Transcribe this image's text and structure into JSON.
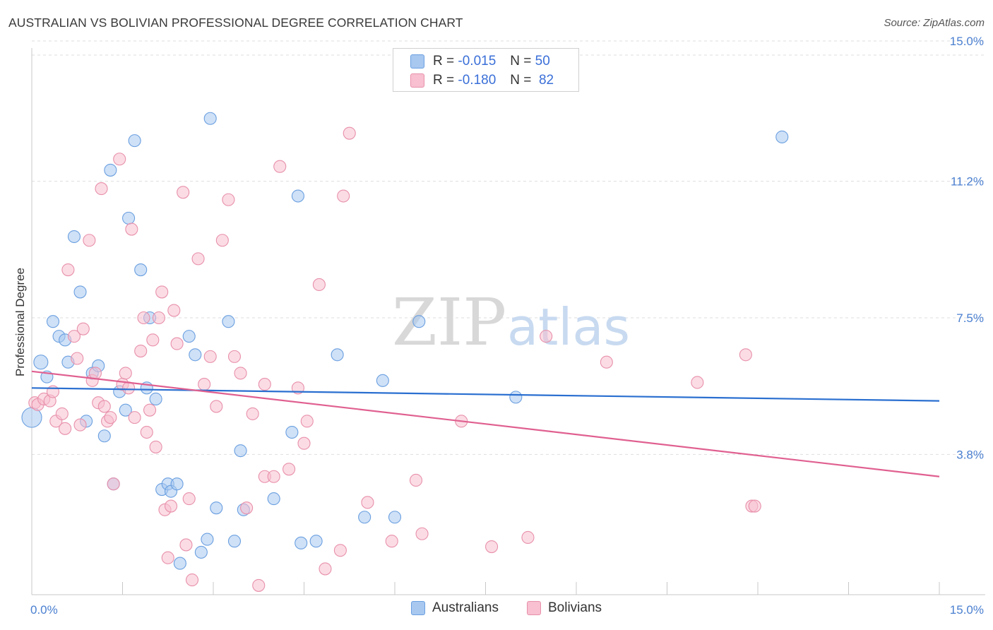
{
  "title": "AUSTRALIAN VS BOLIVIAN PROFESSIONAL DEGREE CORRELATION CHART",
  "source": "Source: ZipAtlas.com",
  "watermark": {
    "zip": "ZIP",
    "atlas": "atlas"
  },
  "legend": {
    "rows": [
      {
        "r_label": "R =",
        "r_value": "-0.015",
        "n_label": "N =",
        "n_value": "50",
        "color": "#a8c8f0",
        "border": "#6a9fe0"
      },
      {
        "r_label": "R =",
        "r_value": "-0.180",
        "n_label": "N =",
        "n_value": "82",
        "color": "#f8c0d0",
        "border": "#e890aa"
      }
    ],
    "bottom": [
      {
        "label": "Australians",
        "color": "#a8c8f0",
        "border": "#6a9fe0"
      },
      {
        "label": "Bolivians",
        "color": "#f8c0d0",
        "border": "#e890aa"
      }
    ]
  },
  "chart_data": {
    "type": "scatter",
    "title": "AUSTRALIAN VS BOLIVIAN PROFESSIONAL DEGREE CORRELATION CHART",
    "xlabel": "",
    "ylabel": "Professional Degree",
    "xlim": [
      0,
      15
    ],
    "ylim": [
      0,
      15
    ],
    "x_tick_labels": [
      "0.0%",
      "15.0%"
    ],
    "y_ticks": [
      3.8,
      7.5,
      11.2,
      15.0
    ],
    "y_tick_labels": [
      "3.8%",
      "7.5%",
      "11.2%",
      "15.0%"
    ],
    "grid": true,
    "series": [
      {
        "name": "Australians",
        "color": "#6a9fe0",
        "fill": "#a8c8f0",
        "trend": {
          "x": [
            0,
            15
          ],
          "y": [
            5.6,
            5.25
          ]
        },
        "points": [
          [
            0.0,
            4.8
          ],
          [
            0.15,
            6.3
          ],
          [
            0.25,
            5.9
          ],
          [
            0.35,
            7.4
          ],
          [
            0.45,
            7.0
          ],
          [
            0.55,
            6.9
          ],
          [
            0.6,
            6.3
          ],
          [
            0.7,
            9.7
          ],
          [
            0.8,
            8.2
          ],
          [
            0.9,
            4.7
          ],
          [
            1.0,
            6.0
          ],
          [
            1.1,
            6.2
          ],
          [
            1.2,
            4.3
          ],
          [
            1.3,
            11.5
          ],
          [
            1.35,
            3.0
          ],
          [
            1.45,
            5.5
          ],
          [
            1.55,
            5.0
          ],
          [
            1.6,
            10.2
          ],
          [
            1.7,
            12.3
          ],
          [
            1.8,
            8.8
          ],
          [
            1.9,
            5.6
          ],
          [
            1.95,
            7.5
          ],
          [
            2.05,
            5.3
          ],
          [
            2.15,
            2.85
          ],
          [
            2.25,
            3.0
          ],
          [
            2.3,
            2.8
          ],
          [
            2.4,
            3.0
          ],
          [
            2.45,
            0.85
          ],
          [
            2.6,
            7.0
          ],
          [
            2.7,
            6.5
          ],
          [
            2.8,
            1.15
          ],
          [
            2.9,
            1.5
          ],
          [
            2.95,
            12.9
          ],
          [
            3.05,
            2.35
          ],
          [
            3.25,
            7.4
          ],
          [
            3.35,
            1.45
          ],
          [
            3.45,
            3.9
          ],
          [
            3.5,
            2.3
          ],
          [
            4.0,
            2.6
          ],
          [
            4.3,
            4.4
          ],
          [
            4.4,
            10.8
          ],
          [
            4.45,
            1.4
          ],
          [
            4.7,
            1.45
          ],
          [
            5.05,
            6.5
          ],
          [
            5.5,
            2.1
          ],
          [
            5.8,
            5.8
          ],
          [
            6.0,
            2.1
          ],
          [
            6.4,
            7.4
          ],
          [
            8.0,
            5.35
          ],
          [
            12.4,
            12.4
          ]
        ]
      },
      {
        "name": "Bolivians",
        "color": "#e890aa",
        "fill": "#f8c0d0",
        "trend": {
          "x": [
            0,
            15
          ],
          "y": [
            6.05,
            3.2
          ]
        },
        "points": [
          [
            0.05,
            5.2
          ],
          [
            0.1,
            5.15
          ],
          [
            0.2,
            5.3
          ],
          [
            0.3,
            5.25
          ],
          [
            0.35,
            5.5
          ],
          [
            0.4,
            4.7
          ],
          [
            0.5,
            4.9
          ],
          [
            0.55,
            4.5
          ],
          [
            0.6,
            8.8
          ],
          [
            0.7,
            7.0
          ],
          [
            0.75,
            6.4
          ],
          [
            0.8,
            4.6
          ],
          [
            0.85,
            7.2
          ],
          [
            0.95,
            9.6
          ],
          [
            1.0,
            5.8
          ],
          [
            1.05,
            6.0
          ],
          [
            1.1,
            5.2
          ],
          [
            1.15,
            11.0
          ],
          [
            1.2,
            5.1
          ],
          [
            1.25,
            4.7
          ],
          [
            1.3,
            4.8
          ],
          [
            1.35,
            3.0
          ],
          [
            1.45,
            11.8
          ],
          [
            1.5,
            5.7
          ],
          [
            1.55,
            6.0
          ],
          [
            1.6,
            5.6
          ],
          [
            1.65,
            9.9
          ],
          [
            1.7,
            4.8
          ],
          [
            1.8,
            6.6
          ],
          [
            1.85,
            7.5
          ],
          [
            1.9,
            4.4
          ],
          [
            1.95,
            5.0
          ],
          [
            2.0,
            6.9
          ],
          [
            2.05,
            4.0
          ],
          [
            2.1,
            7.5
          ],
          [
            2.15,
            8.2
          ],
          [
            2.2,
            2.3
          ],
          [
            2.25,
            1.0
          ],
          [
            2.3,
            2.4
          ],
          [
            2.35,
            7.7
          ],
          [
            2.4,
            6.8
          ],
          [
            2.5,
            10.9
          ],
          [
            2.55,
            1.35
          ],
          [
            2.6,
            2.6
          ],
          [
            2.65,
            0.4
          ],
          [
            2.75,
            9.1
          ],
          [
            2.85,
            5.7
          ],
          [
            2.95,
            6.45
          ],
          [
            3.05,
            5.1
          ],
          [
            3.15,
            9.6
          ],
          [
            3.25,
            10.7
          ],
          [
            3.35,
            6.45
          ],
          [
            3.45,
            6.0
          ],
          [
            3.55,
            2.35
          ],
          [
            3.65,
            4.9
          ],
          [
            3.75,
            0.25
          ],
          [
            3.85,
            5.7
          ],
          [
            3.85,
            3.2
          ],
          [
            4.0,
            3.2
          ],
          [
            4.1,
            11.6
          ],
          [
            4.25,
            3.4
          ],
          [
            4.4,
            5.6
          ],
          [
            4.5,
            4.1
          ],
          [
            4.55,
            4.7
          ],
          [
            4.75,
            8.4
          ],
          [
            4.85,
            0.7
          ],
          [
            5.1,
            1.2
          ],
          [
            5.15,
            10.8
          ],
          [
            5.25,
            12.5
          ],
          [
            5.55,
            2.5
          ],
          [
            5.95,
            1.45
          ],
          [
            6.35,
            3.1
          ],
          [
            6.45,
            1.65
          ],
          [
            7.1,
            4.7
          ],
          [
            7.6,
            1.3
          ],
          [
            8.2,
            1.55
          ],
          [
            8.5,
            7.0
          ],
          [
            9.5,
            6.3
          ],
          [
            11.0,
            5.75
          ],
          [
            11.8,
            6.5
          ],
          [
            11.9,
            2.4
          ],
          [
            11.95,
            2.4
          ]
        ]
      }
    ]
  }
}
